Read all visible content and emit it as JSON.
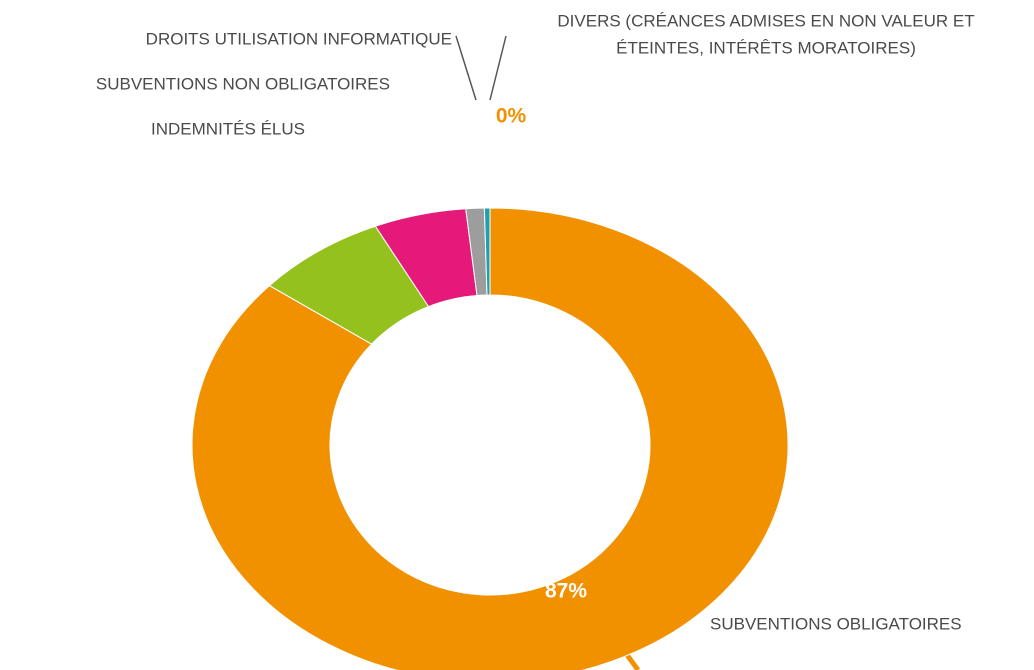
{
  "chart_data": {
    "type": "donut",
    "categories": [
      "SUBVENTIONS OBLIGATOIRES",
      "INDEMNITÉS ÉLUS",
      "SUBVENTIONS NON OBLIGATOIRES",
      "DROITS UTILISATION INFORMATIQUE",
      [
        "DIVERS (CRÉANCES ADMISES EN NON VALEUR ET",
        "ÉTEINTES, INTÉRÊTS MORATOIRES)"
      ]
    ],
    "values": [
      87,
      7,
      5,
      1,
      0.3
    ],
    "value_labels": [
      "87%",
      "7%",
      "5%",
      "1%",
      "0%"
    ],
    "colors": [
      "#f29100",
      "#95c11f",
      "#e5197a",
      "#9d9d9d",
      "#1e9fb4"
    ]
  }
}
